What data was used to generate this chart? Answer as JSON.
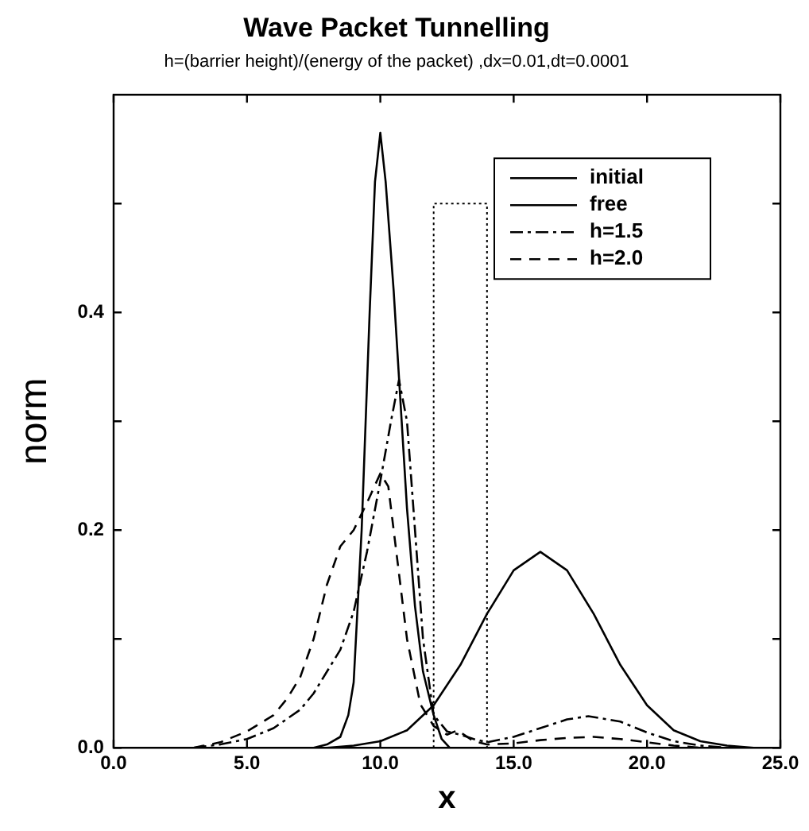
{
  "chart_data": {
    "type": "line",
    "title": "Wave Packet Tunnelling",
    "subtitle": "h=(barrier height)/(energy of the packet) ,dx=0.01,dt=0.0001",
    "xlabel": "x",
    "ylabel": "norm",
    "xlim": [
      0,
      25
    ],
    "ylim": [
      0,
      0.6
    ],
    "xticks": [
      {
        "value": 0,
        "label": "0.0"
      },
      {
        "value": 5,
        "label": "5.0"
      },
      {
        "value": 10,
        "label": "10.0"
      },
      {
        "value": 15,
        "label": "15.0"
      },
      {
        "value": 20,
        "label": "20.0"
      },
      {
        "value": 25,
        "label": "25.0"
      }
    ],
    "yticks": [
      {
        "value": 0,
        "label": "0.0"
      },
      {
        "value": 0.1,
        "label": null
      },
      {
        "value": 0.2,
        "label": "0.2"
      },
      {
        "value": 0.3,
        "label": null
      },
      {
        "value": 0.4,
        "label": "0.4"
      },
      {
        "value": 0.5,
        "label": null
      }
    ],
    "grid": false,
    "legend": "top right",
    "marker": "none",
    "series": [
      {
        "name": "initial",
        "color": "#000000",
        "line_style": "solid",
        "x": [
          7.5,
          8,
          8.5,
          8.8,
          9,
          9.3,
          9.6,
          9.8,
          10,
          10.2,
          10.5,
          10.7,
          11,
          11.3,
          11.6,
          12,
          12.3,
          12.6
        ],
        "values": [
          0,
          0.003,
          0.01,
          0.03,
          0.06,
          0.2,
          0.4,
          0.52,
          0.565,
          0.52,
          0.42,
          0.34,
          0.22,
          0.13,
          0.07,
          0.03,
          0.008,
          0
        ]
      },
      {
        "name": "free",
        "color": "#000000",
        "line_style": "solid",
        "x": [
          8,
          9,
          10,
          11,
          12,
          13,
          14,
          15,
          16,
          17,
          18,
          19,
          20,
          21,
          22,
          23,
          24
        ],
        "values": [
          0,
          0.002,
          0.006,
          0.016,
          0.039,
          0.076,
          0.123,
          0.163,
          0.18,
          0.163,
          0.123,
          0.076,
          0.039,
          0.016,
          0.006,
          0.002,
          0
        ]
      },
      {
        "name": "h=1.5",
        "color": "#000000",
        "line_style": "dashdot",
        "x": [
          3,
          4,
          5,
          6,
          7,
          7.5,
          8,
          8.5,
          9,
          9.5,
          10,
          10.4,
          10.7,
          11,
          11.3,
          11.6,
          12,
          12.5,
          13,
          13.5,
          14,
          15,
          16,
          17,
          17.8,
          19,
          20,
          21,
          22,
          23
        ],
        "values": [
          0,
          0.003,
          0.008,
          0.018,
          0.035,
          0.05,
          0.07,
          0.09,
          0.125,
          0.18,
          0.245,
          0.3,
          0.338,
          0.3,
          0.2,
          0.1,
          0.03,
          0.015,
          0.012,
          0.008,
          0.005,
          0.01,
          0.018,
          0.026,
          0.029,
          0.024,
          0.014,
          0.006,
          0.002,
          0
        ]
      },
      {
        "name": "h=2.0",
        "color": "#000000",
        "line_style": "dashed",
        "x": [
          3,
          4,
          5,
          6,
          6.5,
          7,
          7.5,
          8,
          8.5,
          9,
          9.5,
          10,
          10.3,
          10.6,
          11,
          11.5,
          12,
          12.5,
          12.9,
          13.5,
          14,
          15,
          16,
          17,
          18,
          19,
          20,
          21,
          22
        ],
        "values": [
          0,
          0.005,
          0.015,
          0.03,
          0.045,
          0.065,
          0.1,
          0.15,
          0.185,
          0.2,
          0.225,
          0.252,
          0.24,
          0.18,
          0.1,
          0.04,
          0.02,
          0.012,
          0.016,
          0.006,
          0.003,
          0.004,
          0.007,
          0.009,
          0.01,
          0.008,
          0.005,
          0.002,
          0
        ]
      },
      {
        "color": "#000000",
        "line_style": "dotted",
        "x": [
          12,
          12,
          14,
          14
        ],
        "values": [
          0,
          0.5,
          0.5,
          0
        ]
      }
    ]
  }
}
